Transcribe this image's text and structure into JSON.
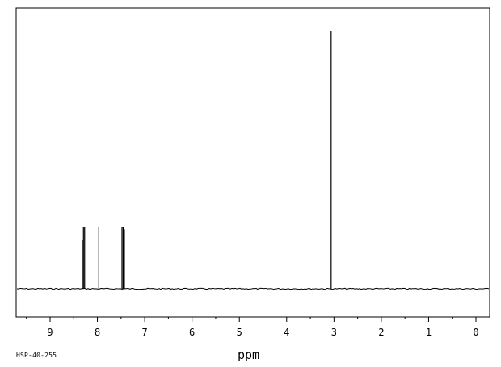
{
  "chart_data": {
    "type": "line",
    "title": "",
    "xlabel": "ppm",
    "ylabel": "",
    "xlim": [
      9.75,
      -0.3
    ],
    "ylim": [
      0,
      1.0
    ],
    "x_ticks": [
      "9",
      "8",
      "7",
      "6",
      "5",
      "4",
      "3",
      "2",
      "1",
      "0"
    ],
    "grid": false,
    "baseline": 0.0,
    "peaks": [
      {
        "x": 8.32,
        "y": 0.19
      },
      {
        "x": 8.295,
        "y": 0.24
      },
      {
        "x": 8.27,
        "y": 0.24
      },
      {
        "x": 7.97,
        "y": 0.24
      },
      {
        "x": 7.48,
        "y": 0.24
      },
      {
        "x": 7.455,
        "y": 0.24
      },
      {
        "x": 7.43,
        "y": 0.23
      },
      {
        "x": 3.06,
        "y": 1.0
      }
    ]
  },
  "footer": {
    "sample_id": "HSP-40-255"
  }
}
